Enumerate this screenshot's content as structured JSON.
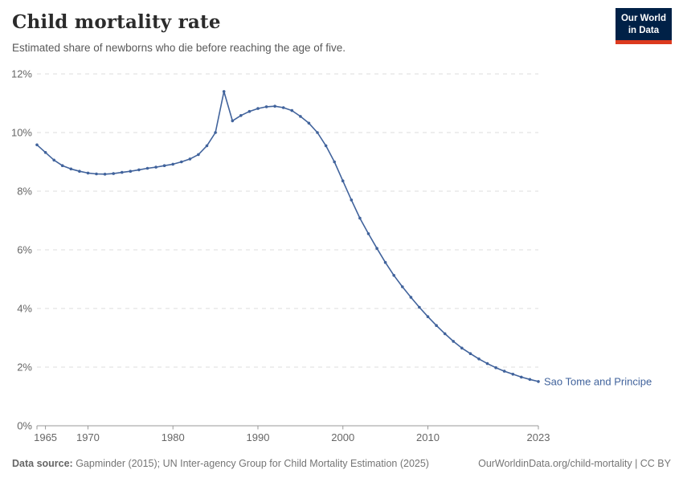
{
  "header": {
    "title": "Child mortality rate",
    "subtitle": "Estimated share of newborns who die before reaching the age of five."
  },
  "logo": {
    "line1": "Our World",
    "line2": "in Data",
    "bg_color": "#002147",
    "accent_color": "#dc3a1f"
  },
  "chart_data": {
    "type": "line",
    "title": "Child mortality rate",
    "xlabel": "",
    "ylabel": "",
    "xlim": [
      1964,
      2023
    ],
    "ylim": [
      0,
      12
    ],
    "yticks": [
      0,
      2,
      4,
      6,
      8,
      10,
      12
    ],
    "ytick_labels": [
      "0%",
      "2%",
      "4%",
      "6%",
      "8%",
      "10%",
      "12%"
    ],
    "xticks": [
      1965,
      1970,
      1980,
      1990,
      2000,
      2010,
      2023
    ],
    "xtick_labels": [
      "1965",
      "1970",
      "1980",
      "1990",
      "2000",
      "2010",
      "2023"
    ],
    "grid": "horizontal-dashed",
    "legend": "end-of-line-label",
    "series": [
      {
        "name": "Sao Tome and Principe",
        "x": [
          1964,
          1965,
          1966,
          1967,
          1968,
          1969,
          1970,
          1971,
          1972,
          1973,
          1974,
          1975,
          1976,
          1977,
          1978,
          1979,
          1980,
          1981,
          1982,
          1983,
          1984,
          1985,
          1986,
          1987,
          1988,
          1989,
          1990,
          1991,
          1992,
          1993,
          1994,
          1995,
          1996,
          1997,
          1998,
          1999,
          2000,
          2001,
          2002,
          2003,
          2004,
          2005,
          2006,
          2007,
          2008,
          2009,
          2010,
          2011,
          2012,
          2013,
          2014,
          2015,
          2016,
          2017,
          2018,
          2019,
          2020,
          2021,
          2022,
          2023
        ],
        "values": [
          9.58,
          9.32,
          9.06,
          8.87,
          8.76,
          8.68,
          8.62,
          8.59,
          8.58,
          8.6,
          8.64,
          8.68,
          8.73,
          8.78,
          8.82,
          8.87,
          8.92,
          9.0,
          9.1,
          9.25,
          9.55,
          10.0,
          11.4,
          10.4,
          10.58,
          10.72,
          10.82,
          10.88,
          10.9,
          10.85,
          10.75,
          10.55,
          10.32,
          10.0,
          9.55,
          9.0,
          8.35,
          7.7,
          7.08,
          6.55,
          6.05,
          5.57,
          5.13,
          4.74,
          4.38,
          4.04,
          3.72,
          3.42,
          3.14,
          2.88,
          2.65,
          2.46,
          2.28,
          2.12,
          1.98,
          1.86,
          1.76,
          1.66,
          1.58,
          1.51
        ]
      }
    ],
    "colors": {
      "line": "#41639C",
      "point": "#41639C",
      "grid": "#dcdcdc",
      "axis": "#999999",
      "tick_text": "#666666"
    }
  },
  "footer": {
    "source_label": "Data source:",
    "source_text": " Gapminder (2015); UN Inter-agency Group for Child Mortality Estimation (2025)",
    "link_text": "OurWorldinData.org/child-mortality | CC BY"
  }
}
